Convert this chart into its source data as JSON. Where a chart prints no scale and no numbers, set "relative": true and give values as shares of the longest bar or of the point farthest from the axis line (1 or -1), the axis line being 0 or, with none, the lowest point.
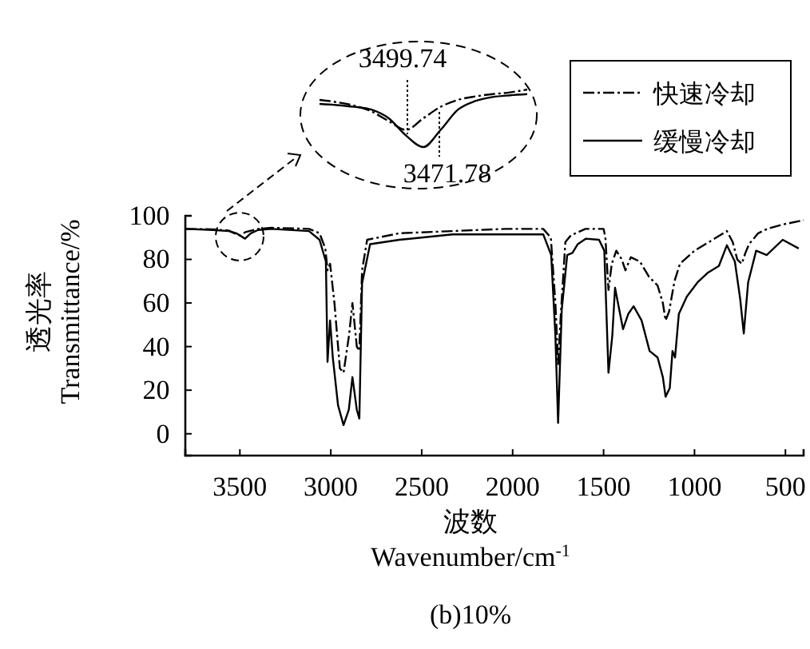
{
  "chart_data": [
    {
      "type": "line",
      "title": "(b)10%",
      "xlabel": "波数\nWavenumber/cm$^{-1}$",
      "ylabel": "透光率\nTransmittance/%",
      "xlim": [
        3800,
        400
      ],
      "xticks": [
        3500,
        3000,
        2500,
        2000,
        1500,
        1000,
        500
      ],
      "ylim": [
        -10,
        100
      ],
      "yticks": [
        0,
        20,
        40,
        60,
        80,
        100
      ],
      "legend": "top right",
      "marker": "none",
      "series": [
        {
          "name": "快速冷却",
          "color": "#000000",
          "line_style": "dashed",
          "x": [
            3800,
            3650,
            3560,
            3530,
            3499.74,
            3470,
            3400,
            3326,
            3120,
            3062,
            3030,
            3018,
            3004,
            2980,
            2950,
            2930,
            2900,
            2881,
            2857,
            2843,
            2828,
            2800,
            2623,
            2330,
            2037,
            1832,
            1790,
            1765,
            1750,
            1735,
            1710,
            1680,
            1600,
            1500,
            1490,
            1473,
            1455,
            1430,
            1400,
            1380,
            1350,
            1300,
            1250,
            1203,
            1174,
            1159,
            1140,
            1110,
            1080,
            1000,
            900,
            822,
            790,
            765,
            740,
            720,
            700,
            650,
            600,
            515,
            400
          ],
          "values": [
            94,
            93.8,
            93.2,
            92,
            91,
            92.5,
            94,
            94.5,
            94,
            92,
            85,
            75,
            78,
            60,
            30,
            28,
            45,
            60,
            40,
            38,
            75,
            89,
            92,
            93,
            94,
            94,
            90,
            60,
            32,
            55,
            88,
            91,
            94,
            94,
            90,
            66,
            78,
            84,
            80,
            75,
            81,
            79,
            72,
            68,
            60,
            52,
            56,
            70,
            78,
            84,
            89,
            93,
            88,
            80,
            78,
            83,
            87,
            92,
            94,
            96,
            98
          ]
        },
        {
          "name": "缓慢冷却",
          "color": "#000000",
          "line_style": "solid",
          "x": [
            3800,
            3650,
            3560,
            3520,
            3471.78,
            3440,
            3400,
            3326,
            3120,
            3062,
            3027,
            3018,
            3004,
            2989,
            2960,
            2930,
            2901,
            2881,
            2857,
            2843,
            2828,
            2784,
            2623,
            2330,
            2037,
            1832,
            1788,
            1765,
            1750,
            1730,
            1700,
            1671,
            1642,
            1598,
            1525,
            1496,
            1473,
            1452,
            1437,
            1414,
            1393,
            1364,
            1335,
            1291,
            1247,
            1203,
            1174,
            1159,
            1136,
            1121,
            1107,
            1086,
            1042,
            983,
            925,
            866,
            822,
            778,
            749,
            729,
            705,
            661,
            603,
            515,
            427
          ],
          "values": [
            94,
            93.5,
            93,
            92,
            89.5,
            92,
            93.5,
            94,
            93,
            89,
            79,
            33,
            52,
            35,
            13,
            4,
            11,
            26,
            11,
            7,
            69,
            87,
            89,
            91.5,
            91.5,
            91.5,
            82,
            45,
            5,
            57,
            82,
            83,
            87,
            89.5,
            89,
            84,
            28,
            45,
            67,
            57,
            48,
            55,
            58.5,
            52,
            38,
            35,
            26,
            17,
            21,
            38,
            35,
            55,
            63,
            69.5,
            74,
            77,
            86.5,
            79,
            62,
            46,
            69.5,
            84,
            82,
            89,
            85
          ]
        }
      ]
    },
    {
      "type": "line",
      "relative": true,
      "annotations": [
        "3499.74",
        "3471.78"
      ],
      "categories": [
        null,
        null,
        null,
        null,
        null,
        null,
        null,
        null,
        null,
        null,
        null,
        null,
        null
      ],
      "series": [
        {
          "color": "#000000",
          "line_style": "dashed",
          "values": [
            0.82,
            0.78,
            0.72,
            0.62,
            0.45,
            0.3,
            0.5,
            0.7,
            0.82,
            0.88,
            0.92,
            0.95,
            1
          ]
        },
        {
          "color": "#000000",
          "line_style": "solid",
          "values": [
            0.75,
            0.73,
            0.7,
            0.65,
            0.5,
            0.2,
            0,
            0.3,
            0.65,
            0.8,
            0.87,
            0.9,
            0.92
          ]
        }
      ]
    }
  ]
}
